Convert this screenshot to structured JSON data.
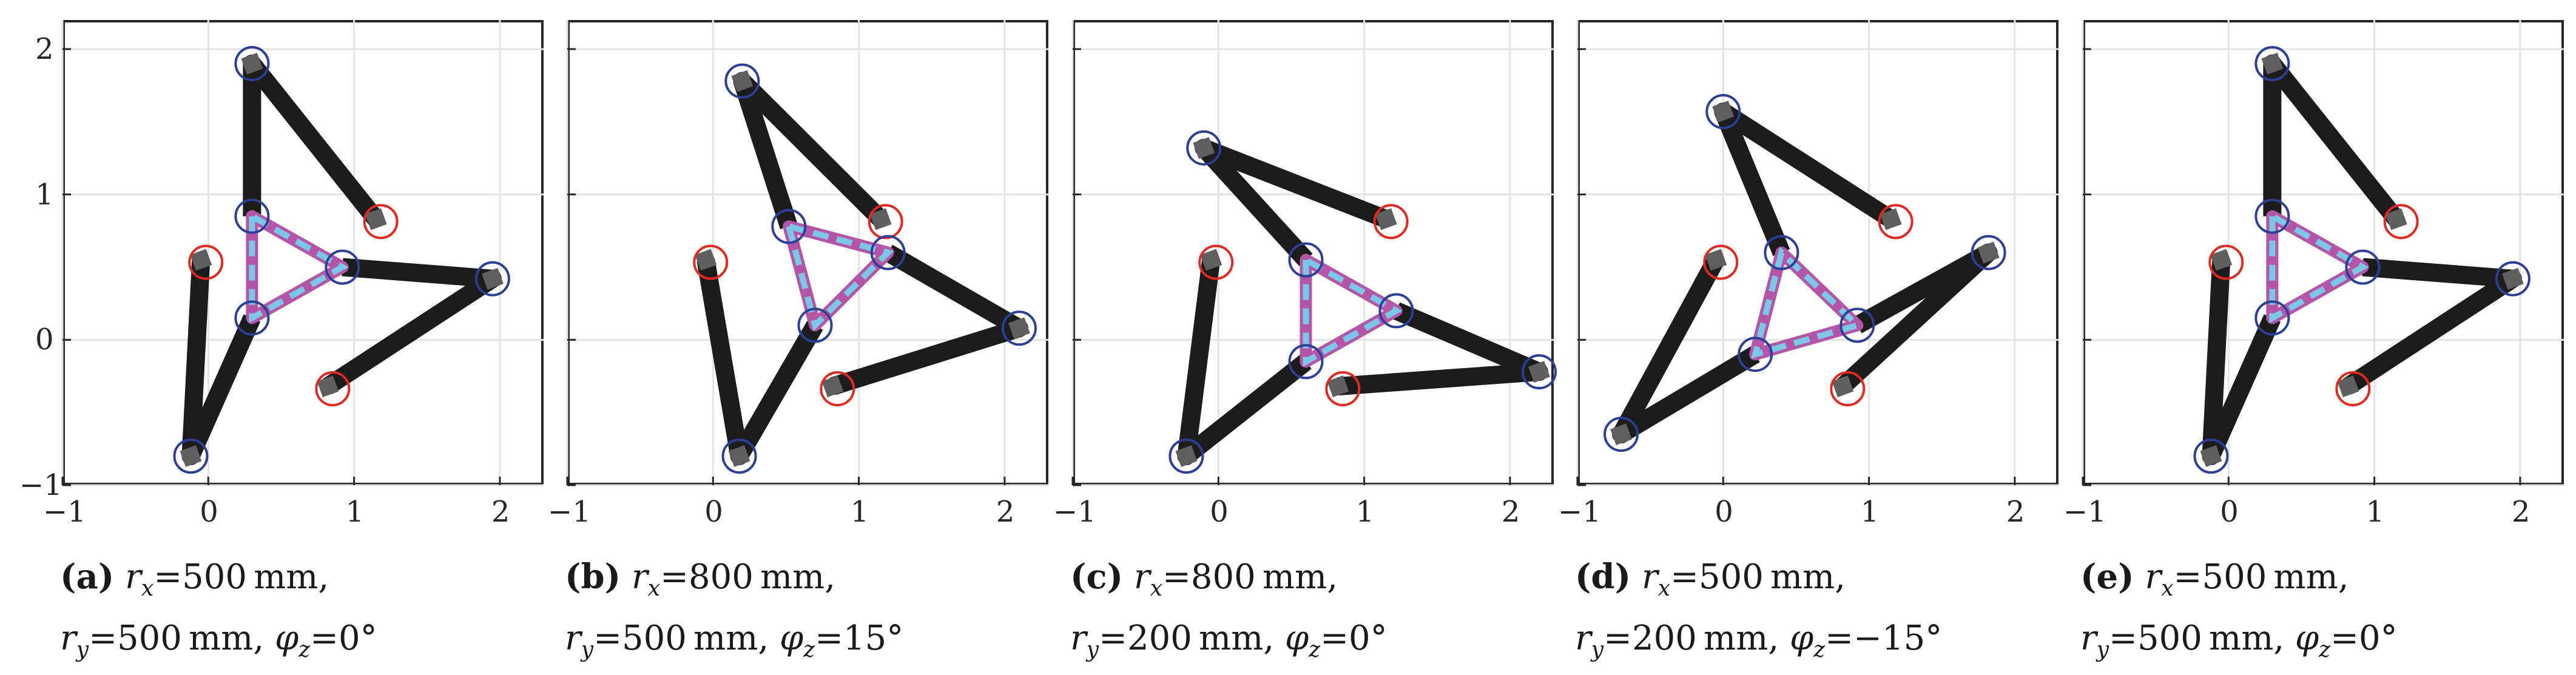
{
  "figure": {
    "x_ticks": [
      "−1",
      "0",
      "1",
      "2"
    ],
    "y_ticks": [
      "2",
      "1",
      "0",
      "−1"
    ],
    "colors": {
      "link": "#1c1c1c",
      "platform": "#b455a8",
      "platform_dash": "#7cc6e6",
      "moving_joint": "#2b3f96",
      "base_joint": "#e0291f",
      "joint_square": "#5f5f5f",
      "grid": "#e3e3e3"
    },
    "panels": [
      {
        "id": "a",
        "caption": {
          "label": "(a)",
          "rx": "500",
          "ry": "500",
          "phi": "0°",
          "unit": "mm"
        },
        "base_joints": [
          [
            1.15,
            0.83
          ],
          [
            -0.05,
            0.55
          ],
          [
            0.82,
            -0.32
          ]
        ],
        "elbows": [
          [
            0.3,
            1.9
          ],
          [
            -0.12,
            -0.8
          ],
          [
            1.95,
            0.42
          ]
        ],
        "platform": [
          [
            0.3,
            0.85
          ],
          [
            0.3,
            0.15
          ],
          [
            0.92,
            0.5
          ]
        ],
        "chains": [
          [
            0,
            0,
            0
          ],
          [
            1,
            1,
            1
          ],
          [
            2,
            2,
            2
          ]
        ]
      },
      {
        "id": "b",
        "caption": {
          "label": "(b)",
          "rx": "800",
          "ry": "500",
          "phi": "15°",
          "unit": "mm"
        },
        "base_joints": [
          [
            1.15,
            0.83
          ],
          [
            -0.05,
            0.55
          ],
          [
            0.82,
            -0.32
          ]
        ],
        "elbows": [
          [
            0.2,
            1.78
          ],
          [
            0.18,
            -0.8
          ],
          [
            2.1,
            0.08
          ]
        ],
        "platform": [
          [
            0.52,
            0.78
          ],
          [
            0.7,
            0.1
          ],
          [
            1.2,
            0.6
          ]
        ],
        "chains": [
          [
            0,
            0,
            0
          ],
          [
            1,
            1,
            1
          ],
          [
            2,
            2,
            2
          ]
        ]
      },
      {
        "id": "c",
        "caption": {
          "label": "(c)",
          "rx": "800",
          "ry": "200",
          "phi": "0°",
          "unit": "mm"
        },
        "base_joints": [
          [
            1.15,
            0.83
          ],
          [
            -0.05,
            0.55
          ],
          [
            0.82,
            -0.32
          ]
        ],
        "elbows": [
          [
            -0.1,
            1.32
          ],
          [
            -0.22,
            -0.8
          ],
          [
            2.2,
            -0.22
          ]
        ],
        "platform": [
          [
            0.6,
            0.55
          ],
          [
            0.6,
            -0.15
          ],
          [
            1.22,
            0.2
          ]
        ],
        "chains": [
          [
            0,
            0,
            0
          ],
          [
            1,
            1,
            1
          ],
          [
            2,
            2,
            2
          ]
        ]
      },
      {
        "id": "d",
        "caption": {
          "label": "(d)",
          "rx": "500",
          "ry": "200",
          "phi": "−15°",
          "unit": "mm"
        },
        "base_joints": [
          [
            1.15,
            0.83
          ],
          [
            -0.05,
            0.55
          ],
          [
            0.82,
            -0.32
          ]
        ],
        "elbows": [
          [
            0.0,
            1.57
          ],
          [
            -0.7,
            -0.65
          ],
          [
            1.82,
            0.6
          ]
        ],
        "platform": [
          [
            0.4,
            0.6
          ],
          [
            0.22,
            -0.1
          ],
          [
            0.92,
            0.1
          ]
        ],
        "chains": [
          [
            0,
            0,
            0
          ],
          [
            1,
            1,
            1
          ],
          [
            2,
            2,
            2
          ]
        ]
      },
      {
        "id": "e",
        "caption": {
          "label": "(e)",
          "rx": "500",
          "ry": "500",
          "phi": "0°",
          "unit": "mm"
        },
        "base_joints": [
          [
            1.15,
            0.83
          ],
          [
            -0.05,
            0.55
          ],
          [
            0.82,
            -0.32
          ]
        ],
        "elbows": [
          [
            0.3,
            1.9
          ],
          [
            -0.12,
            -0.8
          ],
          [
            1.95,
            0.42
          ]
        ],
        "platform": [
          [
            0.3,
            0.85
          ],
          [
            0.3,
            0.15
          ],
          [
            0.92,
            0.5
          ]
        ],
        "chains": [
          [
            0,
            0,
            0
          ],
          [
            1,
            1,
            1
          ],
          [
            2,
            2,
            2
          ]
        ]
      }
    ]
  }
}
